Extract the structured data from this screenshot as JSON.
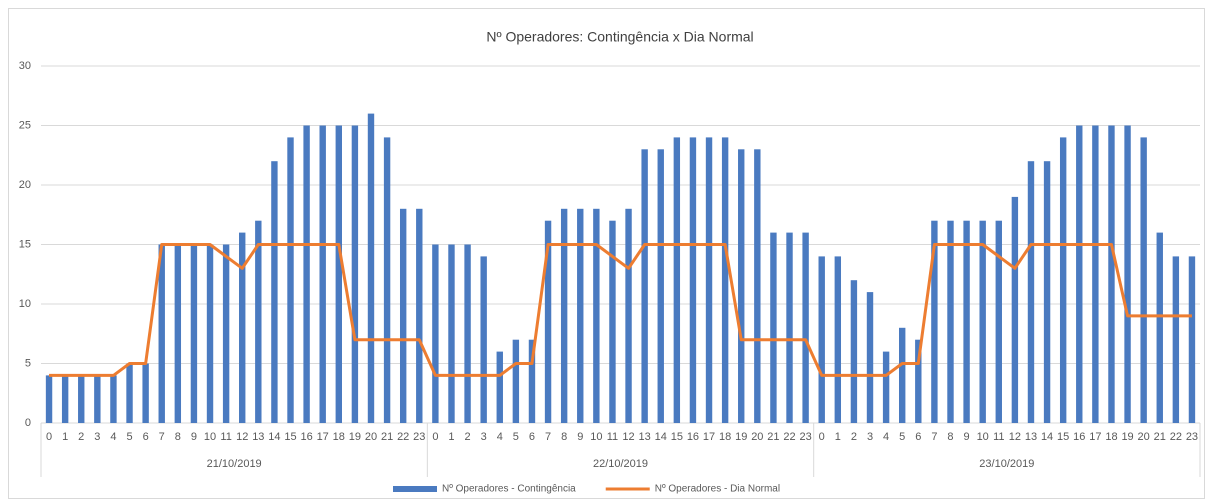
{
  "chart_data": {
    "type": "combo",
    "title": "Nº Operadores: Contingência x Dia Normal",
    "categories": [
      "0",
      "1",
      "2",
      "3",
      "4",
      "5",
      "6",
      "7",
      "8",
      "9",
      "10",
      "11",
      "12",
      "13",
      "14",
      "15",
      "16",
      "17",
      "18",
      "19",
      "20",
      "21",
      "22",
      "23",
      "0",
      "1",
      "2",
      "3",
      "4",
      "5",
      "6",
      "7",
      "8",
      "9",
      "10",
      "11",
      "12",
      "13",
      "14",
      "15",
      "16",
      "17",
      "18",
      "19",
      "20",
      "21",
      "22",
      "23",
      "0",
      "1",
      "2",
      "3",
      "4",
      "5",
      "6",
      "7",
      "8",
      "9",
      "10",
      "11",
      "12",
      "13",
      "14",
      "15",
      "16",
      "17",
      "18",
      "19",
      "20",
      "21",
      "22",
      "23"
    ],
    "groups": [
      "21/10/2019",
      "22/10/2019",
      "23/10/2019"
    ],
    "series": [
      {
        "name": "Nº Operadores - Contingência",
        "type": "bar",
        "color": "#4a7ac0",
        "values": [
          4,
          4,
          4,
          4,
          4,
          5,
          5,
          15,
          15,
          15,
          15,
          15,
          16,
          17,
          22,
          24,
          25,
          25,
          25,
          25,
          26,
          24,
          18,
          18,
          15,
          15,
          15,
          14,
          6,
          7,
          7,
          17,
          18,
          18,
          18,
          17,
          18,
          23,
          23,
          24,
          24,
          24,
          24,
          23,
          23,
          16,
          16,
          16,
          14,
          14,
          12,
          11,
          6,
          8,
          7,
          17,
          17,
          17,
          17,
          17,
          19,
          22,
          22,
          24,
          25,
          25,
          25,
          25,
          24,
          16,
          14,
          14
        ]
      },
      {
        "name": "Nº Operadores - Dia Normal",
        "type": "line",
        "color": "#ed7d31",
        "values": [
          4,
          4,
          4,
          4,
          4,
          5,
          5,
          15,
          15,
          15,
          15,
          14,
          13,
          15,
          15,
          15,
          15,
          15,
          15,
          7,
          7,
          7,
          7,
          7,
          4,
          4,
          4,
          4,
          4,
          5,
          5,
          15,
          15,
          15,
          15,
          14,
          13,
          15,
          15,
          15,
          15,
          15,
          15,
          7,
          7,
          7,
          7,
          7,
          4,
          4,
          4,
          4,
          4,
          5,
          5,
          15,
          15,
          15,
          15,
          14,
          13,
          15,
          15,
          15,
          15,
          15,
          15,
          9,
          9,
          9,
          9,
          9
        ]
      }
    ],
    "ylim": [
      0,
      30
    ],
    "yticks": [
      0,
      5,
      10,
      15,
      20,
      25,
      30
    ],
    "grid": true,
    "legend": "bottom"
  }
}
